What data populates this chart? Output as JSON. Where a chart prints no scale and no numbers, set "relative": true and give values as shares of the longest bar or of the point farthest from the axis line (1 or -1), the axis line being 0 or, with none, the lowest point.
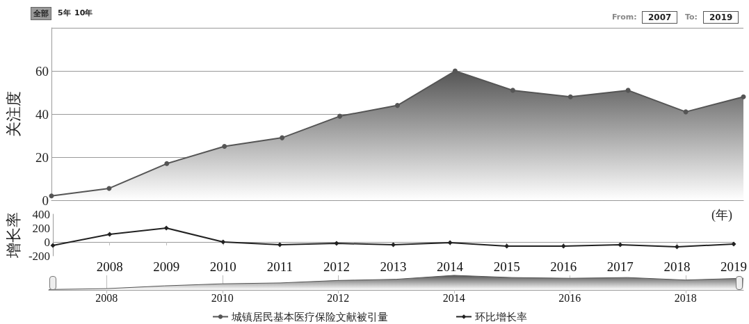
{
  "chart_data": [
    {
      "type": "area",
      "ylabel": "关注度",
      "x": [
        2007,
        2008,
        2009,
        2010,
        2011,
        2012,
        2013,
        2014,
        2015,
        2016,
        2017,
        2018,
        2019
      ],
      "series": [
        {
          "name": "城镇居民基本医疗保险文献被引量",
          "color": "#555555",
          "values": [
            2,
            5.5,
            17,
            25,
            29,
            39,
            44,
            60,
            51,
            48,
            51,
            41,
            48
          ]
        }
      ],
      "xlim": [
        2007,
        2019
      ],
      "ylim": [
        0,
        80
      ],
      "yticks": [
        0,
        20,
        40,
        60
      ],
      "grid": "y",
      "tick_labels": "y",
      "marker": "circle",
      "legend": "bottom",
      "annotations": [
        "全部",
        "5年",
        "10年",
        "From:",
        "2007",
        "To:",
        "2019"
      ]
    },
    {
      "type": "line",
      "ylabel": "增长率",
      "xlabel": "(年)",
      "x": [
        2007,
        2008,
        2009,
        2010,
        2011,
        2012,
        2013,
        2014,
        2015,
        2016,
        2017,
        2018,
        2019
      ],
      "series": [
        {
          "name": "环比增长率",
          "color": "#222222",
          "values": [
            -50,
            110,
            200,
            0,
            -40,
            -20,
            -40,
            -10,
            -60,
            -60,
            -40,
            -70,
            -30
          ]
        }
      ],
      "xlim": [
        2007,
        2019
      ],
      "xticks": [
        2008,
        2009,
        2010,
        2011,
        2012,
        2013,
        2014,
        2015,
        2016,
        2017,
        2018,
        2019
      ],
      "ylim": [
        -200,
        400
      ],
      "yticks": [
        -200,
        0,
        200,
        400
      ],
      "marker": "diamond",
      "legend": "bottom"
    },
    {
      "type": "area",
      "relative": true,
      "x": [
        2007,
        2008,
        2009,
        2010,
        2011,
        2012,
        2013,
        2014,
        2015,
        2016,
        2017,
        2018,
        2019
      ],
      "series": [
        {
          "color": "#555555",
          "values": [
            0.03,
            0.09,
            0.28,
            0.42,
            0.48,
            0.65,
            0.73,
            1,
            0.85,
            0.8,
            0.85,
            0.68,
            0.8
          ]
        }
      ],
      "xlim": [
        2007,
        2019
      ],
      "xticks": [
        2008,
        2010,
        2012,
        2014,
        2016,
        2018
      ],
      "grid": "x"
    }
  ]
}
